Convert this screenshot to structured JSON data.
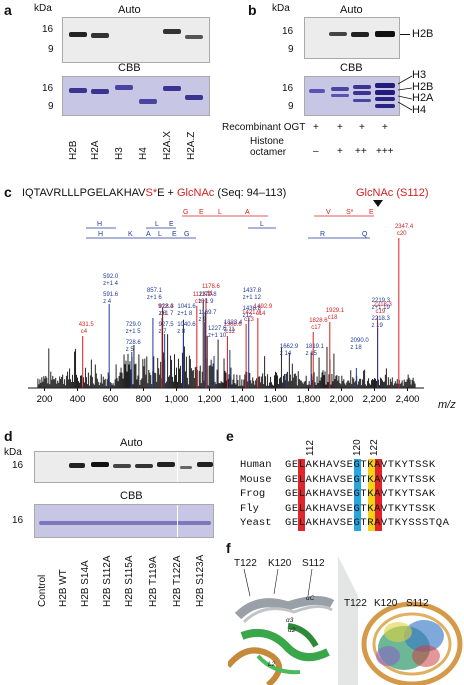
{
  "panel_a": {
    "label": "a",
    "kda": "kDa",
    "auto": "Auto",
    "cbb": "CBB",
    "markers_top": [
      "16",
      "9"
    ],
    "markers_bottom": [
      "16",
      "9"
    ],
    "lanes": [
      "H2B",
      "H2A",
      "H3",
      "H4",
      "H2A.X",
      "H2A.Z"
    ]
  },
  "panel_b": {
    "label": "b",
    "kda": "kDa",
    "auto": "Auto",
    "cbb": "CBB",
    "markers_top": [
      "16",
      "9"
    ],
    "markers_bottom": [
      "16",
      "9"
    ],
    "right_top": "H2B",
    "right_bottom": [
      "H3",
      "H2B",
      "H2A",
      "H4"
    ],
    "row1_label": "Recombinant OGT",
    "row1_vals": [
      "+",
      "+",
      "+",
      "+"
    ],
    "row2_label": "Histone octamer",
    "row2_vals": [
      "–",
      "+",
      "++",
      "+++"
    ]
  },
  "panel_c": {
    "label": "c",
    "seq_prefix": "IQTAVRLLLPGELAKHAV",
    "seq_mod": "S*",
    "seq_suffix": "E + ",
    "seq_glc": "GlcNAc",
    "seq_range": " (Seq: 94–113)",
    "glc_label": "GlcNAc (S112)",
    "xlabel": "m/z",
    "xticks": [
      "200",
      "400",
      "600",
      "800",
      "1,000",
      "1,200",
      "1,400",
      "1,600",
      "1,800",
      "2,000",
      "2,200",
      "2,400"
    ],
    "top_red_letters": [
      "G",
      "E",
      "L",
      "A",
      "V",
      "S*",
      "E"
    ],
    "blue_letters_1": [
      "H",
      "L",
      "E",
      "L"
    ],
    "blue_letters_2": [
      "H",
      "K",
      "A",
      "L",
      "E",
      "G",
      "R",
      "Q"
    ],
    "red_peaks": [
      {
        "m": "431.5",
        "ion": "c4"
      },
      {
        "m": "912.4",
        "ion": "c8"
      },
      {
        "m": "1178.6",
        "ion": "c11"
      },
      {
        "m": "1123.2",
        "ion": "c10"
      },
      {
        "m": "1308.6",
        "ion": "c12"
      },
      {
        "m": "1421.9",
        "ion": "c13"
      },
      {
        "m": "1492.9",
        "ion": "c14"
      },
      {
        "m": "1828.6",
        "ion": "c17"
      },
      {
        "m": "1929.1",
        "ion": "c18"
      },
      {
        "m": "2218.3",
        "ion": "c19"
      },
      {
        "m": "2347.4",
        "ion": "c20"
      }
    ],
    "blue_peaks": [
      {
        "m": "592.0",
        "ion": "z+1 4"
      },
      {
        "m": "591.6",
        "ion": "z 4"
      },
      {
        "m": "729.0",
        "ion": "z+1 5"
      },
      {
        "m": "728.6",
        "ion": "z 5"
      },
      {
        "m": "857.1",
        "ion": "z+1 6"
      },
      {
        "m": "928.3",
        "ion": "z+1 7"
      },
      {
        "m": "927.5",
        "ion": "z 7"
      },
      {
        "m": "1041.6",
        "ion": "z+1 8"
      },
      {
        "m": "1040.6",
        "ion": "z 8"
      },
      {
        "m": "1170.8",
        "ion": "z+1 9"
      },
      {
        "m": "1169.7",
        "ion": "z 9"
      },
      {
        "m": "1227.6",
        "ion": "z+1 10"
      },
      {
        "m": "1323.4",
        "ion": "z 11"
      },
      {
        "m": "1437.8",
        "ion": "z+1 12"
      },
      {
        "m": "1436.8",
        "ion": "z12"
      },
      {
        "m": "1662.9",
        "ion": "z 14"
      },
      {
        "m": "1819.1",
        "ion": "z 15"
      },
      {
        "m": "2090.0",
        "ion": "z 18"
      },
      {
        "m": "2219.3",
        "ion": "z+1 19"
      },
      {
        "m": "2218.3",
        "ion": "z 19"
      }
    ]
  },
  "panel_d": {
    "label": "d",
    "kda": "kDa",
    "auto": "Auto",
    "cbb": "CBB",
    "marker_top": "16",
    "marker_bottom": "16",
    "lanes": [
      "Control",
      "H2B WT",
      "H2B S14A",
      "H2B S112A",
      "H2B S115A",
      "H2B T119A",
      "H2B T122A",
      "H2B S123A"
    ]
  },
  "panel_e": {
    "label": "e",
    "positions": [
      "112",
      "120",
      "122"
    ],
    "rows": [
      {
        "species": "Human",
        "seq": "GELAKHAVSEGTKAVTKYTSSK"
      },
      {
        "species": "Mouse",
        "seq": "GELAKHAVSEGTKAVTKYTSSK"
      },
      {
        "species": "Frog",
        "seq": "GELAKHAVSEGTKAVTKYTSAK"
      },
      {
        "species": "Fly",
        "seq": "GELAKHAVSEGTKAVTKYTSSK"
      },
      {
        "species": "Yeast",
        "seq": "GELAKHAVSEGTRAVTKYSSSTQA"
      }
    ]
  },
  "panel_f": {
    "label": "f",
    "left_labels": [
      "T122",
      "K120",
      "S112"
    ],
    "right_labels": [
      "T122",
      "K120",
      "S112"
    ],
    "helix_labels": [
      "αC",
      "α3",
      "α2",
      "L2"
    ]
  },
  "colors": {
    "red": "#d62020",
    "blue": "#1e3a9a",
    "cbb_bg": "#c7c6e4",
    "hl_red": "#e0262c",
    "hl_blue": "#27a6e0",
    "hl_yellow": "#f4d21a"
  }
}
